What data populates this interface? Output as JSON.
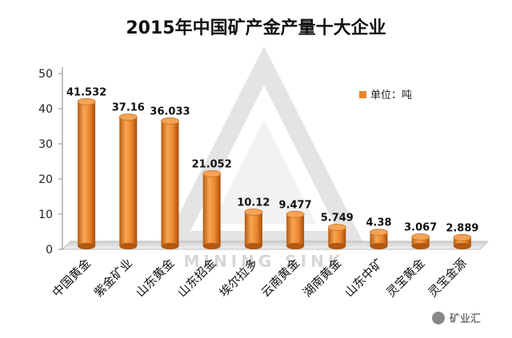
{
  "chart_data": {
    "type": "bar",
    "title": "2015年中国矿产金产量十大企业",
    "categories": [
      "中国黄金",
      "紫金矿业",
      "山东黄金",
      "山东招金",
      "埃尔拉多",
      "云南黄金",
      "湖南黄金",
      "山东中矿",
      "灵宝黄金",
      "灵宝金源"
    ],
    "values": [
      41.532,
      37.16,
      36.033,
      21.052,
      10.12,
      9.477,
      5.749,
      4.38,
      3.067,
      2.889
    ],
    "value_labels": [
      "41.532",
      "37.16",
      "36.033",
      "21.052",
      "10.12",
      "9.477",
      "5.749",
      "4.38",
      "3.067",
      "2.889"
    ],
    "legend": "单位：吨",
    "legend_position": "top-right",
    "ylim": [
      0,
      50
    ],
    "yticks": [
      0,
      10,
      20,
      30,
      40,
      50
    ],
    "bar_style": "3d-cylinder",
    "bar_color": "#e8862e",
    "grid": false
  },
  "watermark": {
    "text": "MINING SINK",
    "brand": "矿业汇"
  }
}
